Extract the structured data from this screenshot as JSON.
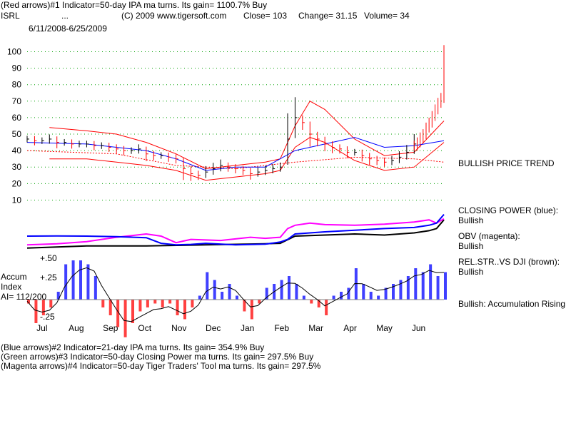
{
  "header": {
    "line1": "(Red arrows)#1 Indicator=50-day IPA ma turns. Its gain= 1100.7% Buy",
    "ticker": "ISRL",
    "dots": "...",
    "copyright": "(C) 2009 www.tigersoft.com",
    "close": "Close=  103",
    "change": "Change= 31.15",
    "volume": "Volume= 34",
    "date_range": "6/11/2008-6/25/2009"
  },
  "footer": {
    "line1": "(Blue arrows)#2 Indicator=21-day IPA ma turns. Its gain= 354.9% Buy",
    "line2": "(Green arrows)#3 Indicator=50-day Closing Power ma turns. Its gain= 297.5% Buy",
    "line3": "(Magenta arrows)#4 Indicator=50-day Tiger Traders' Tool ma turns. Its gain= 297.5%"
  },
  "right_labels": {
    "trend": "BULLISH PRICE TREND",
    "cp_title": "CLOSING POWER (blue):",
    "cp_value": "Bullish",
    "obv_title": "OBV (magenta):",
    "obv_value": "Bullish",
    "rs_title": "REL.STR..VS DJI (brown):",
    "rs_value": "Bullish",
    "accum": "Bullish: Accumulation Rising"
  },
  "left_labels": {
    "accum": "Accum",
    "index": "Index",
    "ai": "AI= 112/200",
    "plus50": "+.50",
    "plus25": "+.25",
    "minus25": "-.25"
  },
  "colors": {
    "price_up": "#0000ff",
    "price_down": "#ff0000",
    "grid": "#00a000",
    "closing_power": "#0000ff",
    "obv": "#ff00ff",
    "rel_str": "#000000",
    "accum_pos": "#0000ff",
    "accum_neg": "#ff0000"
  },
  "chart_data": [
    {
      "type": "line",
      "title": "ISRL",
      "y_ticks": [
        10,
        20,
        30,
        40,
        50,
        60,
        70,
        80,
        90,
        100
      ],
      "ylim": [
        5,
        108
      ],
      "x_months": [
        "Jul",
        "Aug",
        "Sep",
        "Oct",
        "Nov",
        "Dec",
        "Jan",
        "Feb",
        "Mar",
        "Apr",
        "May",
        "Jun"
      ],
      "series": [
        {
          "role": "price",
          "x": [
            0,
            5,
            10,
            15,
            20,
            25,
            30,
            35,
            40,
            45,
            50,
            55,
            60,
            65,
            70,
            75,
            80,
            85,
            90,
            95,
            100,
            105,
            110,
            115,
            120,
            125,
            130,
            135,
            140,
            145,
            150,
            155,
            160,
            165,
            170,
            175,
            180,
            185,
            190,
            195,
            200,
            205,
            210,
            215,
            220,
            225,
            230,
            235,
            240,
            245,
            250,
            255,
            260
          ],
          "values": [
            47,
            46,
            46,
            47,
            45,
            45,
            44,
            44,
            44,
            43,
            43,
            42,
            41,
            40,
            40,
            41,
            38,
            37,
            37,
            36,
            35,
            29,
            26,
            25,
            27,
            29,
            31,
            30,
            29,
            28,
            26,
            27,
            28,
            29,
            30,
            47,
            60,
            57,
            50,
            47,
            44,
            42,
            41,
            39,
            39,
            37,
            35,
            34,
            33,
            34,
            36,
            39,
            44
          ]
        },
        {
          "role": "price_tail",
          "x": [
            260,
            262,
            264,
            266,
            268,
            270,
            272,
            274,
            276,
            278,
            280
          ],
          "values": [
            44,
            46,
            49,
            51,
            55,
            58,
            62,
            66,
            70,
            73,
            102
          ]
        },
        {
          "role": "upper_band",
          "x": [
            15,
            40,
            60,
            80,
            100,
            120,
            140,
            160,
            170,
            180,
            190,
            200,
            220,
            240,
            260,
            280
          ],
          "values": [
            54,
            52,
            50,
            45,
            38,
            29,
            31,
            33,
            35,
            55,
            70,
            65,
            47,
            37,
            39,
            58
          ]
        },
        {
          "role": "lower_band",
          "x": [
            15,
            40,
            60,
            80,
            100,
            120,
            140,
            160,
            170,
            180,
            190,
            200,
            220,
            240,
            260,
            280
          ],
          "values": [
            35,
            35,
            33,
            31,
            28,
            22,
            24,
            26,
            28,
            42,
            48,
            45,
            34,
            28,
            30,
            45
          ]
        },
        {
          "role": "ma_50",
          "x": [
            0,
            40,
            80,
            100,
            120,
            140,
            160,
            180,
            200,
            220,
            240,
            260,
            280
          ],
          "values": [
            45,
            44,
            40,
            35,
            28,
            30,
            30,
            40,
            44,
            48,
            42,
            43,
            46
          ]
        },
        {
          "role": "ma_200",
          "x": [
            0,
            60,
            100,
            140,
            180,
            220,
            260,
            280
          ],
          "values": [
            40,
            38,
            31,
            29,
            33,
            36,
            35,
            33
          ]
        }
      ]
    },
    {
      "type": "line",
      "title": "CLOSING POWER (blue)",
      "x": [
        0,
        20,
        40,
        60,
        80,
        90,
        100,
        110,
        120,
        140,
        160,
        170,
        175,
        180,
        200,
        220,
        240,
        260,
        270,
        275,
        280
      ],
      "values": [
        0.95,
        0.96,
        0.95,
        0.93,
        0.88,
        0.62,
        0.55,
        0.57,
        0.62,
        0.55,
        0.58,
        0.68,
        0.8,
        1.05,
        1.15,
        1.22,
        1.3,
        1.35,
        1.45,
        1.55,
        1.95
      ]
    },
    {
      "type": "line",
      "title": "OBV (magenta)",
      "x": [
        0,
        20,
        40,
        60,
        80,
        90,
        100,
        110,
        130,
        150,
        160,
        170,
        175,
        180,
        190,
        200,
        220,
        240,
        260,
        270,
        275,
        280
      ],
      "values": [
        0.55,
        0.6,
        0.7,
        0.9,
        1.05,
        0.95,
        0.65,
        0.8,
        0.75,
        0.9,
        0.85,
        0.9,
        1.3,
        1.45,
        1.55,
        1.48,
        1.45,
        1.5,
        1.6,
        1.7,
        1.55,
        1.75
      ]
    },
    {
      "type": "line",
      "title": "REL.STR..VS DJI (brown)",
      "x": [
        0,
        40,
        80,
        120,
        160,
        170,
        180,
        200,
        220,
        240,
        260,
        270,
        275,
        280
      ],
      "values": [
        0.4,
        0.5,
        0.5,
        0.55,
        0.6,
        0.62,
        0.95,
        1.0,
        1.05,
        1.0,
        1.1,
        1.2,
        1.3,
        1.7
      ]
    },
    {
      "type": "bar",
      "title": "Accum Index",
      "ylim": [
        -0.5,
        0.6
      ],
      "y_ticks": [
        0.5,
        0.25,
        -0.25
      ],
      "x": [
        0,
        5,
        10,
        15,
        20,
        25,
        30,
        35,
        40,
        45,
        50,
        55,
        60,
        65,
        70,
        75,
        80,
        85,
        90,
        95,
        100,
        105,
        110,
        115,
        120,
        125,
        130,
        135,
        140,
        145,
        150,
        155,
        160,
        165,
        170,
        175,
        180,
        185,
        190,
        195,
        200,
        205,
        210,
        215,
        220,
        225,
        230,
        235,
        240,
        245,
        250,
        255,
        260,
        265,
        270,
        275,
        280
      ],
      "values": [
        -0.05,
        -0.3,
        -0.2,
        -0.1,
        0.1,
        0.45,
        0.5,
        0.5,
        0.45,
        0.3,
        -0.1,
        -0.2,
        -0.35,
        -0.48,
        -0.3,
        -0.15,
        -0.1,
        -0.05,
        -0.1,
        -0.05,
        -0.2,
        -0.25,
        -0.1,
        0.05,
        0.35,
        0.25,
        0.1,
        0.2,
        0.05,
        -0.15,
        -0.25,
        -0.05,
        0.15,
        0.2,
        0.25,
        0.3,
        0.2,
        0.05,
        -0.05,
        -0.1,
        -0.2,
        0.05,
        0.1,
        0.15,
        0.4,
        0.2,
        0.1,
        0.05,
        0.15,
        0.2,
        0.25,
        0.3,
        0.4,
        0.35,
        0.45,
        0.3,
        0.35
      ]
    }
  ]
}
